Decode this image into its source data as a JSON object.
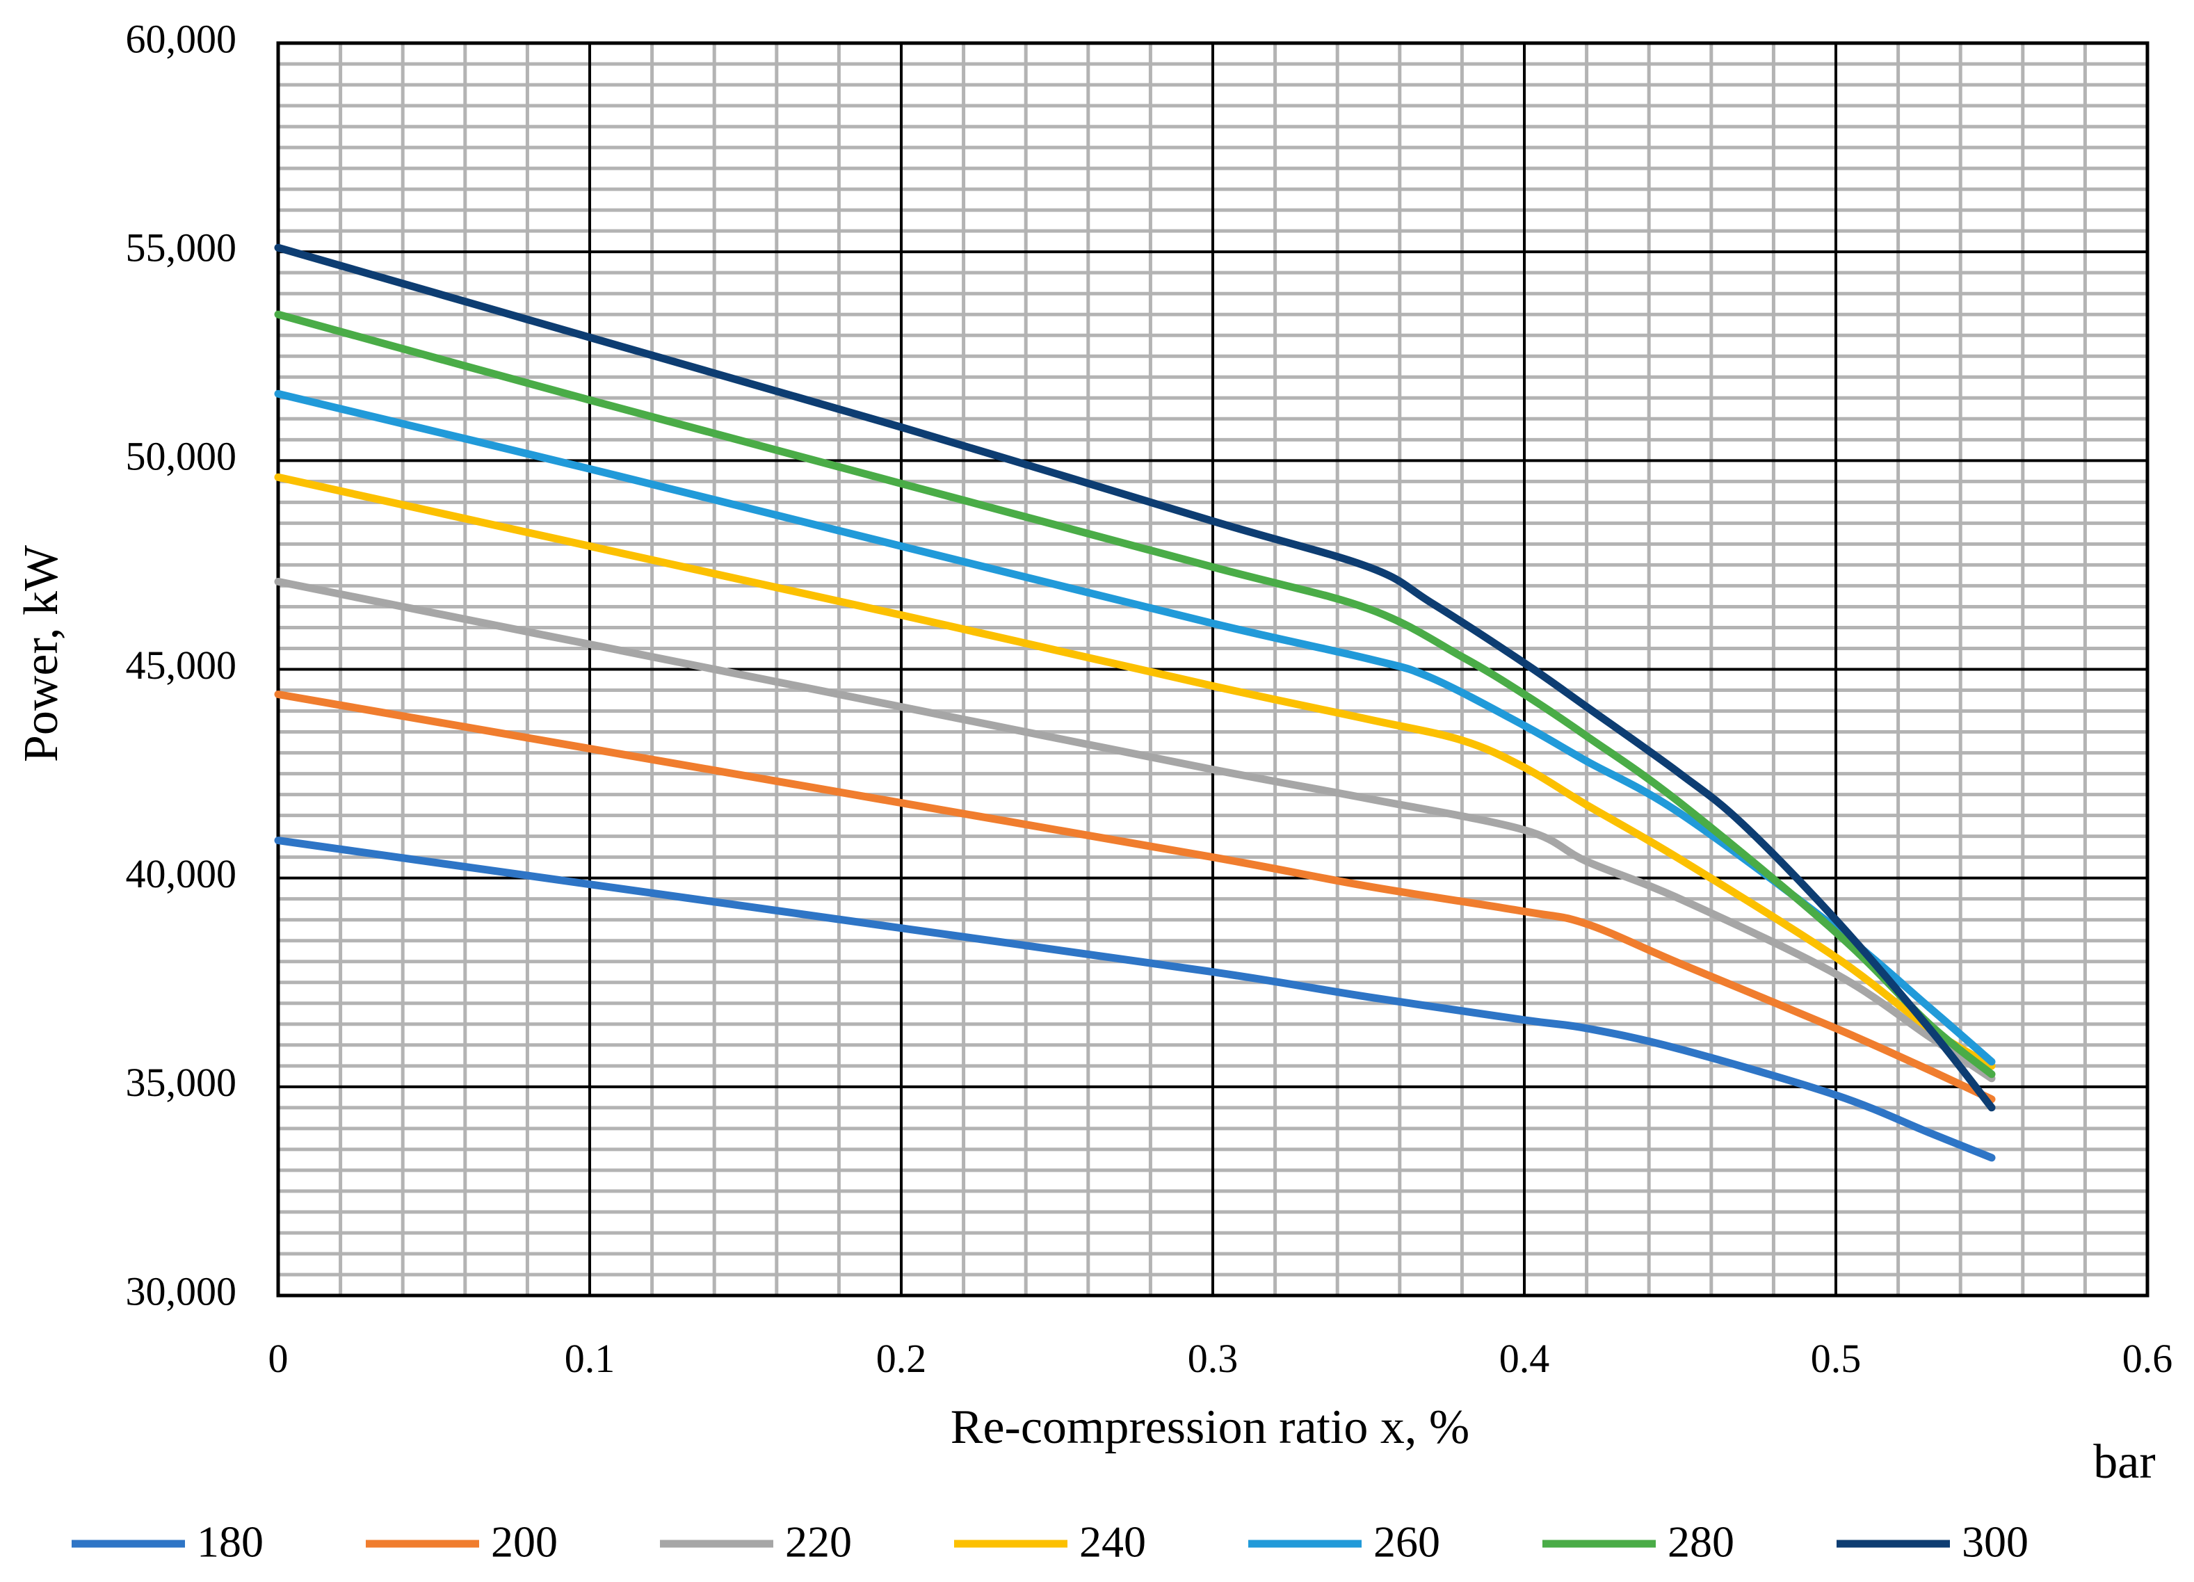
{
  "chart_data": {
    "type": "line",
    "title": "",
    "xlabel": "Re-compression ratio x, %",
    "ylabel": "Power, kW",
    "unit_note": "bar",
    "xlim": [
      0,
      0.6
    ],
    "ylim": [
      30000,
      60000
    ],
    "x_ticks": [
      0,
      0.1,
      0.2,
      0.3,
      0.4,
      0.5,
      0.6
    ],
    "x_tick_labels": [
      "0",
      "0.1",
      "0.2",
      "0.3",
      "0.4",
      "0.5",
      "0.6"
    ],
    "y_ticks": [
      30000,
      35000,
      40000,
      45000,
      50000,
      55000,
      60000
    ],
    "y_tick_labels": [
      "30,000",
      "35,000",
      "40,000",
      "45,000",
      "50,000",
      "55,000",
      "60,000"
    ],
    "grid": true,
    "legend_position": "bottom",
    "series": [
      {
        "name": "180",
        "color": "#2e75c6",
        "x": [
          0,
          0.1,
          0.2,
          0.3,
          0.35,
          0.4,
          0.42,
          0.45,
          0.5,
          0.53,
          0.55
        ],
        "y": [
          40900,
          39850,
          38800,
          37750,
          37150,
          36600,
          36400,
          35900,
          34800,
          33900,
          33300
        ]
      },
      {
        "name": "200",
        "color": "#f07d2e",
        "x": [
          0,
          0.1,
          0.2,
          0.3,
          0.35,
          0.4,
          0.42,
          0.45,
          0.5,
          0.53,
          0.55
        ],
        "y": [
          44400,
          43100,
          41800,
          40500,
          39800,
          39200,
          38900,
          37950,
          36400,
          35400,
          34700
        ]
      },
      {
        "name": "220",
        "color": "#a6a6a6",
        "x": [
          0,
          0.1,
          0.2,
          0.3,
          0.35,
          0.4,
          0.42,
          0.45,
          0.5,
          0.53,
          0.55
        ],
        "y": [
          47100,
          45600,
          44100,
          42600,
          41900,
          41150,
          40400,
          39500,
          37700,
          36200,
          35200
        ]
      },
      {
        "name": "240",
        "color": "#fcc000",
        "x": [
          0,
          0.1,
          0.2,
          0.3,
          0.35,
          0.38,
          0.4,
          0.42,
          0.45,
          0.5,
          0.53,
          0.55
        ],
        "y": [
          49600,
          47950,
          46300,
          44600,
          43800,
          43300,
          42650,
          41750,
          40450,
          38100,
          36400,
          35500
        ]
      },
      {
        "name": "260",
        "color": "#219ad9",
        "x": [
          0,
          0.1,
          0.2,
          0.3,
          0.35,
          0.37,
          0.4,
          0.42,
          0.45,
          0.5,
          0.53,
          0.55
        ],
        "y": [
          51600,
          49800,
          47950,
          46100,
          45250,
          44800,
          43650,
          42800,
          41550,
          38800,
          36900,
          35600
        ]
      },
      {
        "name": "280",
        "color": "#4aac47",
        "x": [
          0,
          0.1,
          0.2,
          0.3,
          0.35,
          0.38,
          0.4,
          0.42,
          0.45,
          0.5,
          0.53,
          0.55
        ],
        "y": [
          53500,
          51450,
          49450,
          47450,
          46450,
          45300,
          44400,
          43400,
          41800,
          38700,
          36500,
          35300
        ]
      },
      {
        "name": "300",
        "color": "#0d3d72",
        "x": [
          0,
          0.1,
          0.2,
          0.3,
          0.35,
          0.37,
          0.4,
          0.42,
          0.45,
          0.47,
          0.5,
          0.53,
          0.55
        ],
        "y": [
          55100,
          52950,
          50800,
          48550,
          47450,
          46600,
          45150,
          44100,
          42500,
          41300,
          39000,
          36400,
          34500
        ]
      }
    ]
  }
}
